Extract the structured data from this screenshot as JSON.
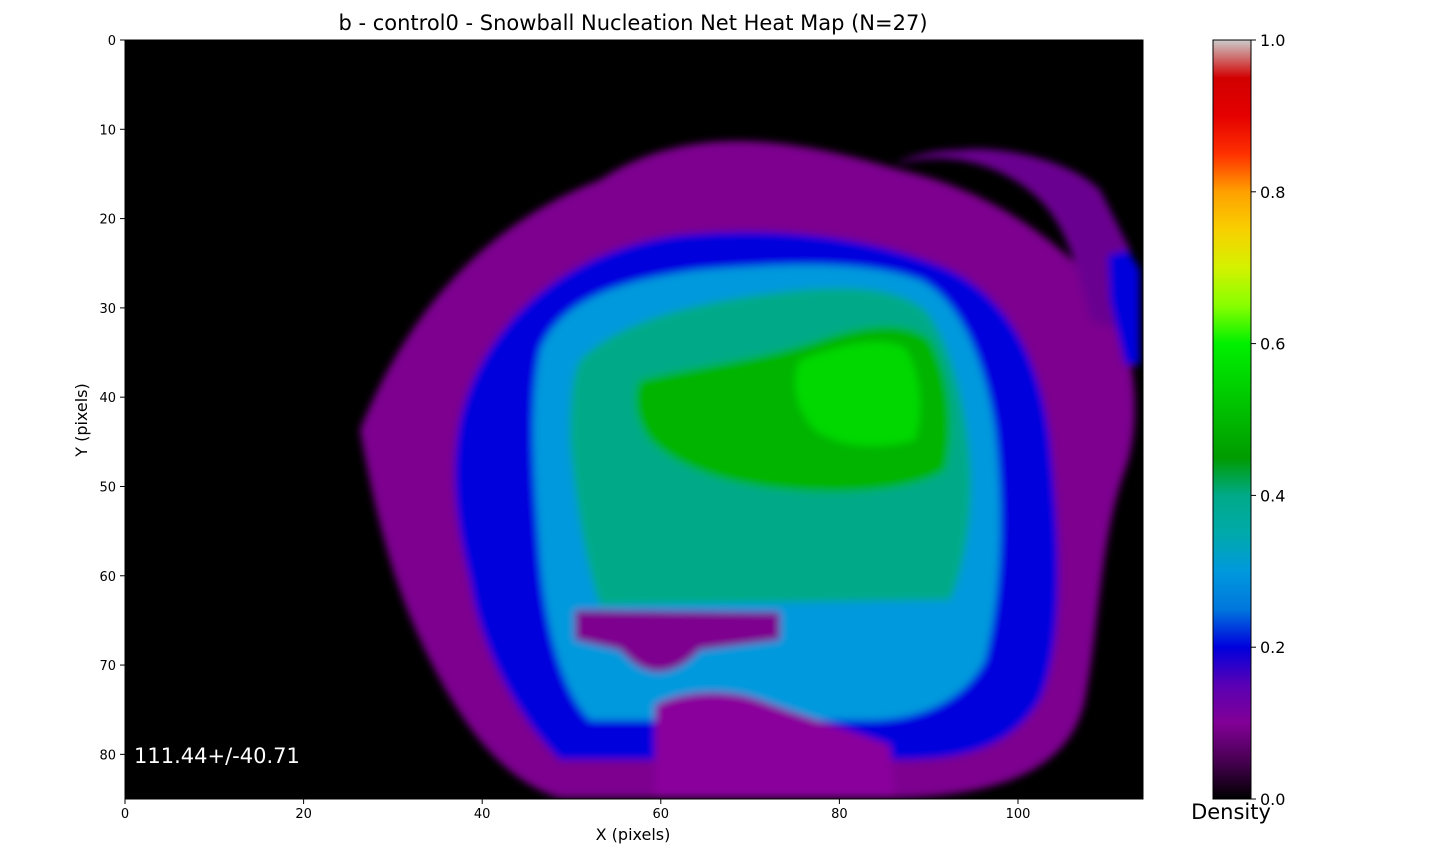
{
  "chart_data": {
    "type": "heatmap",
    "title": "b - control0 - Snowball Nucleation Net Heat Map (N=27)",
    "xlabel": "X (pixels)",
    "ylabel": "Y (pixels)",
    "xlim": [
      0,
      114
    ],
    "ylim": [
      85,
      0
    ],
    "xticks": [
      0,
      20,
      40,
      60,
      80,
      100
    ],
    "yticks": [
      0,
      10,
      20,
      30,
      40,
      50,
      60,
      70,
      80
    ],
    "annotation": "111.44+/-40.71",
    "colorbar": {
      "label": "Density",
      "range": [
        0.0,
        1.0
      ],
      "ticks": [
        0.0,
        0.2,
        0.4,
        0.6,
        0.8,
        1.0
      ],
      "tick_labels": [
        "0.0",
        "0.2",
        "0.4",
        "0.6",
        "0.8",
        "1.0"
      ],
      "colormap": "nipy_spectral"
    },
    "background_color": "#000000",
    "density_regions": [
      {
        "region": "diffuse outer halo",
        "density": 0.1,
        "color": "#8a009c"
      },
      {
        "region": "outer ring",
        "density": 0.2,
        "color": "#0000dd"
      },
      {
        "region": "inner ring",
        "density": 0.3,
        "color": "#0099dd"
      },
      {
        "region": "core",
        "density": 0.4,
        "color": "#00aa88"
      },
      {
        "region": "upper-right peak",
        "density": 0.55,
        "color": "#00cc00"
      }
    ]
  }
}
